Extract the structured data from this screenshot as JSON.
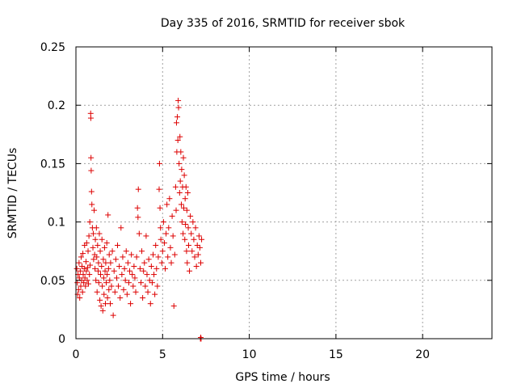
{
  "chart_data": {
    "type": "scatter",
    "title": "Day 335 of 2016, SRMTID for receiver sbok",
    "xlabel": "GPS time / hours",
    "ylabel": "SRMTID / TECUs",
    "xlim": [
      0,
      24
    ],
    "ylim": [
      0,
      0.25
    ],
    "x_ticks": [
      0,
      5,
      10,
      15,
      20
    ],
    "x_tick_labels": [
      "0",
      "5",
      "10",
      "15",
      "20"
    ],
    "y_ticks": [
      0,
      0.05,
      0.1,
      0.15,
      0.2,
      0.25
    ],
    "y_tick_labels": [
      "0",
      "0.05",
      "0.1",
      "0.15",
      "0.2",
      "0.25"
    ],
    "grid": true,
    "marker": "plus",
    "color": "#dd0000",
    "series": [
      {
        "values": [
          [
            0.05,
            0.06
          ],
          [
            0.08,
            0.048
          ],
          [
            0.1,
            0.038
          ],
          [
            0.12,
            0.055
          ],
          [
            0.15,
            0.042
          ],
          [
            0.18,
            0.065
          ],
          [
            0.2,
            0.052
          ],
          [
            0.22,
            0.035
          ],
          [
            0.25,
            0.058
          ],
          [
            0.28,
            0.045
          ],
          [
            0.3,
            0.07
          ],
          [
            0.33,
            0.05
          ],
          [
            0.35,
            0.062
          ],
          [
            0.38,
            0.04
          ],
          [
            0.4,
            0.073
          ],
          [
            0.42,
            0.055
          ],
          [
            0.45,
            0.048
          ],
          [
            0.48,
            0.06
          ],
          [
            0.5,
            0.08
          ],
          [
            0.52,
            0.052
          ],
          [
            0.55,
            0.045
          ],
          [
            0.58,
            0.066
          ],
          [
            0.6,
            0.058
          ],
          [
            0.62,
            0.082
          ],
          [
            0.65,
            0.05
          ],
          [
            0.68,
            0.061
          ],
          [
            0.7,
            0.075
          ],
          [
            0.72,
            0.047
          ],
          [
            0.75,
            0.088
          ],
          [
            0.78,
            0.055
          ],
          [
            0.8,
            0.1
          ],
          [
            0.82,
            0.063
          ],
          [
            0.85,
            0.193
          ],
          [
            0.86,
            0.189
          ],
          [
            0.87,
            0.155
          ],
          [
            0.88,
            0.144
          ],
          [
            0.9,
            0.126
          ],
          [
            0.92,
            0.115
          ],
          [
            0.95,
            0.095
          ],
          [
            0.98,
            0.078
          ],
          [
            1.0,
            0.09
          ],
          [
            1.02,
            0.068
          ],
          [
            1.05,
            0.11
          ],
          [
            1.08,
            0.072
          ],
          [
            1.1,
            0.06
          ],
          [
            1.12,
            0.085
          ],
          [
            1.15,
            0.05
          ],
          [
            1.18,
            0.095
          ],
          [
            1.2,
            0.07
          ],
          [
            1.22,
            0.04
          ],
          [
            1.25,
            0.08
          ],
          [
            1.28,
            0.058
          ],
          [
            1.3,
            0.065
          ],
          [
            1.32,
            0.048
          ],
          [
            1.35,
            0.09
          ],
          [
            1.38,
            0.033
          ],
          [
            1.4,
            0.075
          ],
          [
            1.42,
            0.055
          ],
          [
            1.45,
            0.028
          ],
          [
            1.48,
            0.062
          ],
          [
            1.5,
            0.085
          ],
          [
            1.52,
            0.045
          ],
          [
            1.55,
            0.024
          ],
          [
            1.58,
            0.068
          ],
          [
            1.6,
            0.052
          ],
          [
            1.62,
            0.038
          ],
          [
            1.65,
            0.078
          ],
          [
            1.68,
            0.058
          ],
          [
            1.7,
            0.03
          ],
          [
            1.72,
            0.065
          ],
          [
            1.75,
            0.048
          ],
          [
            1.78,
            0.082
          ],
          [
            1.8,
            0.055
          ],
          [
            1.82,
            0.035
          ],
          [
            1.85,
            0.106
          ],
          [
            1.88,
            0.06
          ],
          [
            1.9,
            0.042
          ],
          [
            1.92,
            0.072
          ],
          [
            1.95,
            0.05
          ],
          [
            1.98,
            0.03
          ],
          [
            2.0,
            0.065
          ],
          [
            2.05,
            0.045
          ],
          [
            2.1,
            0.075
          ],
          [
            2.15,
            0.02
          ],
          [
            2.2,
            0.058
          ],
          [
            2.25,
            0.04
          ],
          [
            2.3,
            0.068
          ],
          [
            2.35,
            0.052
          ],
          [
            2.4,
            0.08
          ],
          [
            2.45,
            0.045
          ],
          [
            2.5,
            0.062
          ],
          [
            2.55,
            0.035
          ],
          [
            2.6,
            0.095
          ],
          [
            2.65,
            0.055
          ],
          [
            2.7,
            0.07
          ],
          [
            2.75,
            0.042
          ],
          [
            2.8,
            0.06
          ],
          [
            2.85,
            0.05
          ],
          [
            2.9,
            0.075
          ],
          [
            2.95,
            0.038
          ],
          [
            3.0,
            0.065
          ],
          [
            3.05,
            0.048
          ],
          [
            3.1,
            0.058
          ],
          [
            3.15,
            0.03
          ],
          [
            3.2,
            0.072
          ],
          [
            3.25,
            0.055
          ],
          [
            3.3,
            0.045
          ],
          [
            3.35,
            0.062
          ],
          [
            3.4,
            0.052
          ],
          [
            3.45,
            0.04
          ],
          [
            3.5,
            0.07
          ],
          [
            3.55,
            0.112
          ],
          [
            3.58,
            0.104
          ],
          [
            3.6,
            0.128
          ],
          [
            3.65,
            0.09
          ],
          [
            3.7,
            0.06
          ],
          [
            3.75,
            0.048
          ],
          [
            3.8,
            0.075
          ],
          [
            3.85,
            0.035
          ],
          [
            3.9,
            0.058
          ],
          [
            3.95,
            0.065
          ],
          [
            4.0,
            0.045
          ],
          [
            4.05,
            0.088
          ],
          [
            4.1,
            0.055
          ],
          [
            4.15,
            0.04
          ],
          [
            4.2,
            0.068
          ],
          [
            4.25,
            0.05
          ],
          [
            4.3,
            0.03
          ],
          [
            4.35,
            0.062
          ],
          [
            4.4,
            0.048
          ],
          [
            4.45,
            0.072
          ],
          [
            4.5,
            0.055
          ],
          [
            4.55,
            0.038
          ],
          [
            4.6,
            0.08
          ],
          [
            4.65,
            0.06
          ],
          [
            4.7,
            0.045
          ],
          [
            4.75,
            0.07
          ],
          [
            4.8,
            0.128
          ],
          [
            4.82,
            0.15
          ],
          [
            4.85,
            0.112
          ],
          [
            4.88,
            0.095
          ],
          [
            4.9,
            0.085
          ],
          [
            4.95,
            0.065
          ],
          [
            5.0,
            0.075
          ],
          [
            5.05,
            0.1
          ],
          [
            5.1,
            0.082
          ],
          [
            5.15,
            0.06
          ],
          [
            5.2,
            0.09
          ],
          [
            5.25,
            0.115
          ],
          [
            5.3,
            0.07
          ],
          [
            5.35,
            0.095
          ],
          [
            5.4,
            0.12
          ],
          [
            5.45,
            0.078
          ],
          [
            5.5,
            0.065
          ],
          [
            5.55,
            0.105
          ],
          [
            5.6,
            0.088
          ],
          [
            5.65,
            0.028
          ],
          [
            5.7,
            0.072
          ],
          [
            5.75,
            0.13
          ],
          [
            5.78,
            0.11
          ],
          [
            5.8,
            0.185
          ],
          [
            5.82,
            0.16
          ],
          [
            5.85,
            0.19
          ],
          [
            5.88,
            0.17
          ],
          [
            5.9,
            0.204
          ],
          [
            5.92,
            0.198
          ],
          [
            5.95,
            0.15
          ],
          [
            5.98,
            0.125
          ],
          [
            6.0,
            0.173
          ],
          [
            6.02,
            0.135
          ],
          [
            6.05,
            0.16
          ],
          [
            6.08,
            0.115
          ],
          [
            6.1,
            0.145
          ],
          [
            6.12,
            0.1
          ],
          [
            6.15,
            0.13
          ],
          [
            6.18,
            0.09
          ],
          [
            6.2,
            0.155
          ],
          [
            6.22,
            0.112
          ],
          [
            6.25,
            0.14
          ],
          [
            6.28,
            0.085
          ],
          [
            6.3,
            0.12
          ],
          [
            6.32,
            0.098
          ],
          [
            6.35,
            0.13
          ],
          [
            6.38,
            0.075
          ],
          [
            6.4,
            0.11
          ],
          [
            6.42,
            0.065
          ],
          [
            6.45,
            0.125
          ],
          [
            6.48,
            0.095
          ],
          [
            6.5,
            0.08
          ],
          [
            6.55,
            0.058
          ],
          [
            6.6,
            0.105
          ],
          [
            6.65,
            0.09
          ],
          [
            6.7,
            0.075
          ],
          [
            6.75,
            0.1
          ],
          [
            6.8,
            0.085
          ],
          [
            6.85,
            0.07
          ],
          [
            6.9,
            0.095
          ],
          [
            6.95,
            0.062
          ],
          [
            7.0,
            0.08
          ],
          [
            7.05,
            0.072
          ],
          [
            7.1,
            0.088
          ],
          [
            7.15,
            0.078
          ],
          [
            7.2,
            0.065
          ],
          [
            7.25,
            0.085
          ],
          [
            7.18,
            0.0
          ],
          [
            7.2,
            0.001
          ],
          [
            7.22,
            0.0
          ]
        ]
      }
    ]
  }
}
